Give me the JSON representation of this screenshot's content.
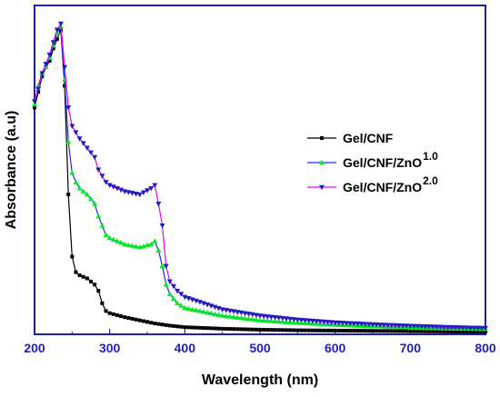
{
  "chart_data": {
    "type": "line",
    "xlabel": "Wavelength (nm)",
    "ylabel": "Absorbance (a.u)",
    "xlim": [
      200,
      800
    ],
    "ylim": [
      0,
      1
    ],
    "xticks": [
      200,
      300,
      400,
      500,
      600,
      700,
      800
    ],
    "yticks_visible": false,
    "grid": false,
    "legend_position": "right",
    "series": [
      {
        "name": "Gel/CNF",
        "marker": "square",
        "color": "#000000",
        "x": [
          200,
          205,
          210,
          215,
          220,
          225,
          230,
          235,
          240,
          245,
          250,
          255,
          260,
          270,
          280,
          285,
          290,
          295,
          300,
          320,
          340,
          360,
          380,
          400,
          450,
          500,
          550,
          600,
          650,
          700,
          750,
          800
        ],
        "y": [
          0.73,
          0.78,
          0.83,
          0.86,
          0.88,
          0.92,
          0.95,
          0.98,
          0.8,
          0.45,
          0.25,
          0.2,
          0.19,
          0.18,
          0.16,
          0.14,
          0.1,
          0.075,
          0.068,
          0.055,
          0.045,
          0.035,
          0.028,
          0.023,
          0.018,
          0.015,
          0.013,
          0.012,
          0.011,
          0.01,
          0.009,
          0.008
        ]
      },
      {
        "name": "Gel/CNF/ZnO",
        "name_superscript": "1.0",
        "marker": "triangle-up",
        "color": "#1f2bff",
        "marker_color": "#00ee22",
        "x": [
          200,
          205,
          210,
          215,
          220,
          225,
          230,
          235,
          240,
          245,
          250,
          255,
          260,
          270,
          280,
          285,
          290,
          295,
          300,
          320,
          340,
          355,
          360,
          365,
          370,
          375,
          380,
          390,
          400,
          450,
          500,
          550,
          600,
          650,
          700,
          750,
          800
        ],
        "y": [
          0.74,
          0.8,
          0.84,
          0.86,
          0.89,
          0.93,
          0.97,
          0.99,
          0.82,
          0.62,
          0.52,
          0.49,
          0.47,
          0.45,
          0.42,
          0.38,
          0.35,
          0.32,
          0.31,
          0.29,
          0.28,
          0.29,
          0.3,
          0.27,
          0.22,
          0.16,
          0.13,
          0.1,
          0.085,
          0.06,
          0.045,
          0.037,
          0.031,
          0.026,
          0.022,
          0.019,
          0.017
        ]
      },
      {
        "name": "Gel/CNF/ZnO",
        "name_superscript": "2.0",
        "marker": "triangle-down",
        "color": "#ee00ee",
        "marker_color": "#1f1fbf",
        "x": [
          200,
          205,
          210,
          215,
          220,
          225,
          230,
          235,
          240,
          245,
          250,
          255,
          260,
          270,
          280,
          285,
          290,
          295,
          300,
          320,
          340,
          355,
          360,
          365,
          370,
          375,
          380,
          390,
          400,
          450,
          500,
          550,
          600,
          650,
          700,
          750,
          800
        ],
        "y": [
          0.75,
          0.79,
          0.84,
          0.87,
          0.9,
          0.94,
          0.98,
          1.0,
          0.86,
          0.73,
          0.67,
          0.65,
          0.63,
          0.6,
          0.57,
          0.53,
          0.51,
          0.49,
          0.48,
          0.46,
          0.45,
          0.47,
          0.48,
          0.42,
          0.35,
          0.22,
          0.17,
          0.14,
          0.12,
          0.08,
          0.06,
          0.047,
          0.038,
          0.032,
          0.027,
          0.023,
          0.02
        ]
      }
    ]
  }
}
